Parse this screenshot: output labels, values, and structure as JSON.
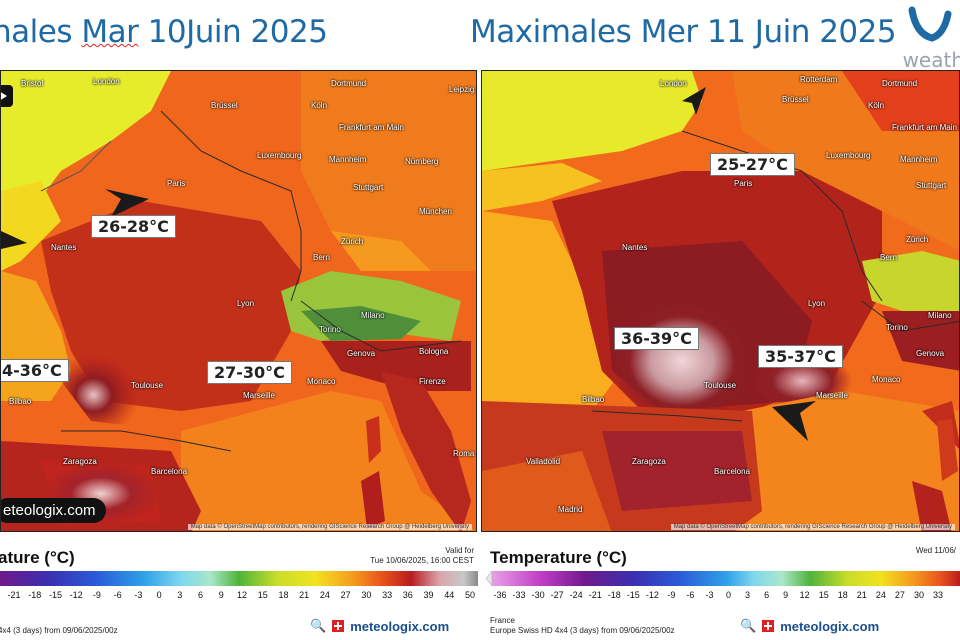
{
  "titles": {
    "left_prefix": "nales ",
    "left_mar": "Mar",
    "left_suffix": " 10Juin 2025",
    "right": "Maximales Mer 11 Juin 2025"
  },
  "brand": {
    "text": "weath"
  },
  "map_left": {
    "callouts": [
      "26-28°C",
      "27-30°C",
      "4-36°C"
    ],
    "cities": [
      "Bristol",
      "London",
      "Dortmund",
      "Leipzig",
      "Brüssel",
      "Köln",
      "Frankfurt am Main",
      "Luxembourg",
      "Mannheim",
      "Nürnberg",
      "Paris",
      "Stuttgart",
      "München",
      "Nantes",
      "Zürich",
      "Bern",
      "Lyon",
      "Torino",
      "Milano",
      "Genova",
      "Bologna",
      "Monaco",
      "Marseille",
      "Toulouse",
      "Bilbao",
      "Firenze",
      "Zaragoza",
      "Barcelona",
      "Roma"
    ],
    "attribution": "Map data © OpenStreetMap contributors, rendering GIScience Research Group @ Heidelberg University",
    "logo": "eteologix.com"
  },
  "map_right": {
    "callouts": [
      "25-27°C",
      "36-39°C",
      "35-37°C"
    ],
    "cities": [
      "Rotterdam",
      "London",
      "Dortmund",
      "Brüssel",
      "Köln",
      "Frankfurt am Main",
      "Luxembourg",
      "Mannheim",
      "Paris",
      "Stuttgart",
      "Nantes",
      "Zürich",
      "Bern",
      "Lyon",
      "Torino",
      "Milano",
      "Genova",
      "Monaco",
      "Marseille",
      "Toulouse",
      "Bilbao",
      "Zaragoza",
      "Barcelona",
      "Valladolid",
      "Madrid"
    ],
    "attribution": "Map data © OpenStreetMap contributors, rendering GIScience Research Group @ Heidelberg University"
  },
  "colorbar_left": {
    "title": "ature (°C)",
    "valid_label": "Valid for",
    "valid_time": "Tue 10/06/2025, 16:00 CEST",
    "ticks": [
      "-21",
      "-18",
      "-15",
      "-12",
      "-9",
      "-6",
      "-3",
      "0",
      "3",
      "6",
      "9",
      "12",
      "15",
      "18",
      "21",
      "24",
      "27",
      "30",
      "33",
      "36",
      "39",
      "44",
      "50"
    ],
    "footer": "4x4 (3 days) from 09/06/2025/00z",
    "logo": "meteologix.com"
  },
  "colorbar_right": {
    "title": "Temperature (°C)",
    "valid_time": "Wed 11/06/",
    "ticks": [
      "-36",
      "-33",
      "-30",
      "-27",
      "-24",
      "-21",
      "-18",
      "-15",
      "-12",
      "-9",
      "-6",
      "-3",
      "0",
      "3",
      "6",
      "9",
      "12",
      "15",
      "18",
      "21",
      "24",
      "27",
      "30",
      "33"
    ],
    "footer_line1": "France",
    "footer_line2": "Europe Swiss HD 4x4 (3 days) from 09/06/2025/00z",
    "logo": "meteologix.com"
  }
}
